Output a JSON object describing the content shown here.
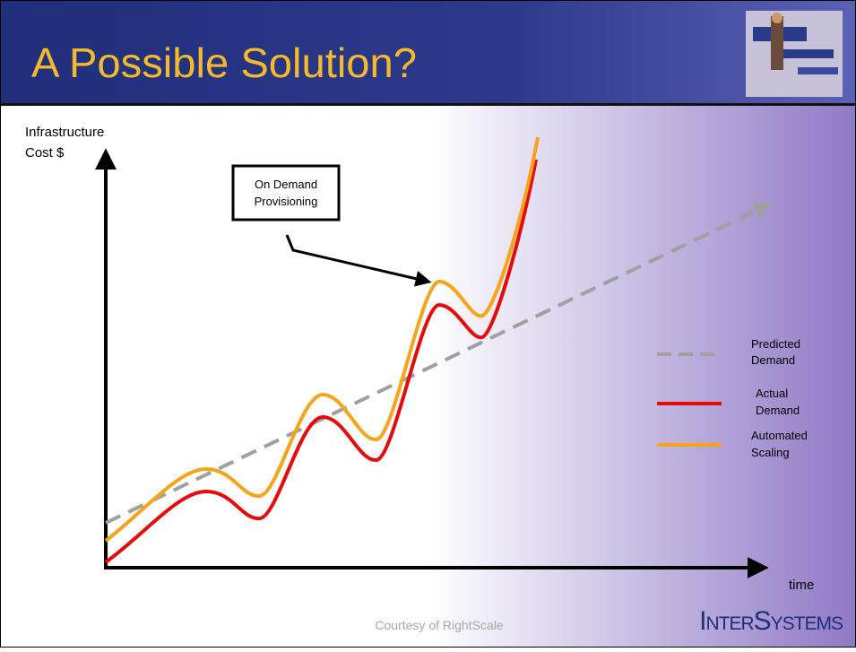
{
  "header": {
    "title": "A Possible Solution?"
  },
  "axes": {
    "y_label": [
      "Infrastructure",
      "Cost $"
    ],
    "x_label": "time"
  },
  "callout": [
    "On Demand",
    "Provisioning"
  ],
  "legend": [
    {
      "label": [
        "Predicted",
        "Demand"
      ]
    },
    {
      "label": [
        "Actual",
        "Demand"
      ]
    },
    {
      "label": [
        "Automated",
        "Scaling"
      ]
    }
  ],
  "footer": {
    "credit": "Courtesy of RightScale",
    "logo": "InterSystems"
  }
}
